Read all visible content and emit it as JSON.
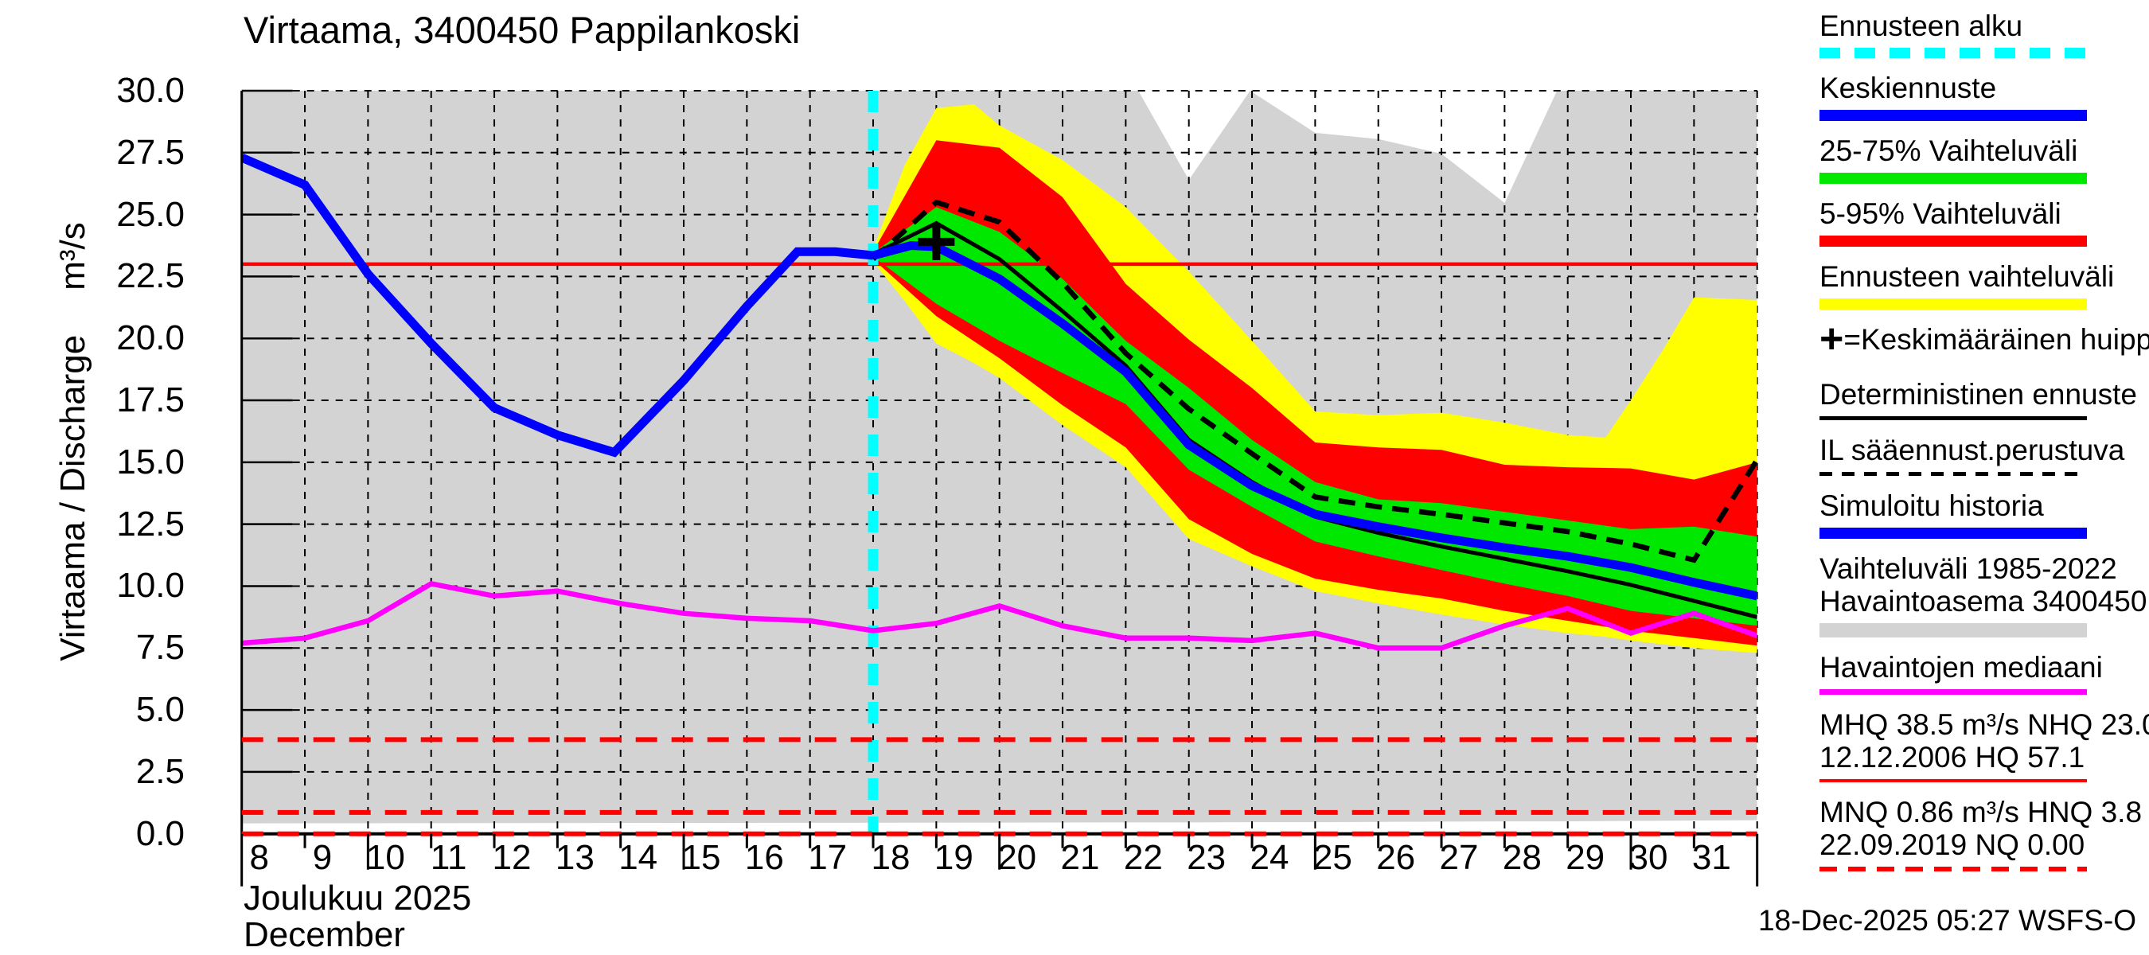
{
  "title": "Virtaama, 3400450 Pappilankoski",
  "y_axis": {
    "label": "Virtaama / Discharge",
    "unit": "m³/s",
    "ticks": [
      "30.0",
      "27.5",
      "25.0",
      "22.5",
      "20.0",
      "17.5",
      "15.0",
      "12.5",
      "10.0",
      "7.5",
      "5.0",
      "2.5",
      "0.0"
    ]
  },
  "x_axis": {
    "days": [
      8,
      9,
      10,
      11,
      12,
      13,
      14,
      15,
      16,
      17,
      18,
      19,
      20,
      21,
      22,
      23,
      24,
      25,
      26,
      27,
      28,
      29,
      30,
      31
    ],
    "month_line1": "Joulukuu 2025",
    "month_line2": "December"
  },
  "footer": {
    "timestamp": "18-Dec-2025 05:27 WSFS-O"
  },
  "colors": {
    "history_band": "#d3d3d3",
    "full_range_band": "#ffff00",
    "band_5_95": "#ff0000",
    "band_25_75": "#00e800",
    "median": "#0000ff",
    "observed_median": "#ff00ff",
    "forecast_start": "#00ffff",
    "reference": "#ff0000",
    "black": "#000000"
  },
  "legend": {
    "items": [
      {
        "label": "Ennusteen alku",
        "swatch": "dash",
        "color": "#00ffff",
        "thick": 13,
        "on": 26,
        "off": 18
      },
      {
        "label": "Keskiennuste",
        "swatch": "solid",
        "color": "#0000ff",
        "thick": 14
      },
      {
        "label": "25-75% Vaihteluväli",
        "swatch": "solid",
        "color": "#00e800",
        "thick": 14
      },
      {
        "label": "5-95% Vaihteluväli",
        "swatch": "solid",
        "color": "#ff0000",
        "thick": 14
      },
      {
        "label": "Ennusteen vaihteluväli",
        "swatch": "solid",
        "color": "#ffff00",
        "thick": 14
      },
      {
        "prefix": "+",
        "label": "=Keskimääräinen huippu",
        "swatch": "none"
      },
      {
        "label": "Deterministinen ennuste",
        "swatch": "solid",
        "color": "#000000",
        "thick": 5
      },
      {
        "label": "IL sääennust.perustuva",
        "swatch": "dash",
        "color": "#000000",
        "thick": 5,
        "on": 16,
        "off": 12
      },
      {
        "label": "Simuloitu historia",
        "swatch": "solid",
        "color": "#0000ff",
        "thick": 14
      },
      {
        "label": "Vaihteluväli 1985-2022",
        "label2": "Havaintoasema 3400450",
        "swatch": "solid",
        "color": "#d3d3d3",
        "thick": 18
      },
      {
        "label": "Havaintojen mediaani",
        "swatch": "solid",
        "color": "#ff00ff",
        "thick": 7
      },
      {
        "label": "MHQ 38.5 m³/s NHQ 23.0",
        "label2": "12.12.2006 HQ 57.1",
        "swatch": "solid",
        "color": "#ff0000",
        "thick": 4
      },
      {
        "label": "MNQ 0.86 m³/s HNQ  3.8",
        "label2": "22.09.2019 NQ 0.00",
        "swatch": "dash",
        "color": "#ff0000",
        "thick": 6,
        "on": 22,
        "off": 14
      }
    ]
  },
  "chart_data": {
    "type": "line",
    "title": "Virtaama, 3400450 Pappilankoski",
    "xlabel": "Joulukuu 2025 / December (day of month, extends to 1 Jan)",
    "ylabel": "Virtaama / Discharge m³/s",
    "x_range": [
      8,
      32
    ],
    "y_range": [
      0,
      30
    ],
    "grid": true,
    "forecast_start_x": 18,
    "mean_peak_marker": {
      "x": 19,
      "y": 23.9
    },
    "reference_lines": {
      "NHQ_solid_red": 23.0,
      "HNQ_dashed_red": 3.8,
      "MNQ_dashed_red": 0.86,
      "NQ_dashed_red": 0.0
    },
    "band_history_1985_2022": {
      "x": [
        8,
        22.2,
        23,
        23.97,
        25,
        26,
        27,
        28,
        28.83,
        32
      ],
      "upper": [
        30,
        30,
        26.4,
        30,
        28.3,
        28.05,
        27.46,
        25.47,
        30,
        30
      ],
      "lower": [
        0.42,
        0.46,
        0.46,
        0.47,
        0.47,
        0.48,
        0.49,
        0.5,
        0.5,
        0.55
      ]
    },
    "band_full_range": {
      "x": [
        18,
        18.5,
        19,
        19.6,
        20,
        21,
        22,
        23,
        24,
        25,
        26,
        27,
        28,
        29,
        29.6,
        30,
        30.5,
        31,
        32
      ],
      "upper": [
        23.6,
        27.0,
        29.3,
        29.45,
        28.6,
        27.2,
        25.3,
        22.7,
        19.9,
        17.05,
        16.9,
        17.0,
        16.6,
        16.1,
        16.0,
        17.5,
        19.5,
        21.66,
        21.55
      ],
      "lower": [
        23.1,
        21.5,
        19.8,
        19.0,
        18.4,
        16.5,
        14.8,
        11.9,
        10.8,
        9.8,
        9.3,
        8.85,
        8.45,
        8.1,
        7.95,
        7.8,
        7.65,
        7.5,
        7.3
      ]
    },
    "band_5_95": {
      "x": [
        18,
        19,
        20,
        21,
        22,
        23,
        24,
        25,
        26,
        27,
        28,
        29,
        30,
        31,
        32
      ],
      "upper": [
        23.5,
        28.0,
        27.7,
        25.7,
        22.2,
        19.95,
        18.0,
        15.8,
        15.6,
        15.5,
        14.9,
        14.8,
        14.75,
        14.3,
        15.0
      ],
      "lower": [
        23.2,
        20.9,
        19.2,
        17.3,
        15.6,
        12.7,
        11.3,
        10.3,
        9.85,
        9.5,
        9.0,
        8.6,
        8.2,
        7.9,
        7.6
      ]
    },
    "band_25_75": {
      "x": [
        18,
        19,
        20,
        21,
        22,
        23,
        24,
        25,
        26,
        27,
        28,
        29,
        30,
        31,
        32
      ],
      "upper": [
        23.45,
        25.3,
        24.3,
        22.4,
        19.9,
        18.0,
        15.9,
        14.2,
        13.5,
        13.35,
        13.0,
        12.65,
        12.3,
        12.4,
        12.0
      ],
      "lower": [
        23.3,
        21.4,
        19.9,
        18.6,
        17.35,
        14.7,
        13.2,
        11.8,
        11.2,
        10.65,
        10.1,
        9.6,
        9.0,
        8.7,
        8.4
      ]
    },
    "simulated_history": {
      "x": [
        8,
        9,
        10,
        11,
        12,
        13,
        13.9,
        15,
        16,
        16.8,
        17.4,
        18
      ],
      "y": [
        27.3,
        26.2,
        22.6,
        19.8,
        17.2,
        16.1,
        15.4,
        18.3,
        21.3,
        23.5,
        23.5,
        23.35
      ]
    },
    "median_forecast": {
      "x": [
        18,
        18.6,
        19,
        20,
        21,
        22,
        23,
        24,
        25,
        26,
        27,
        28,
        29,
        30,
        31,
        32
      ],
      "y": [
        23.35,
        23.75,
        23.7,
        22.4,
        20.6,
        18.65,
        15.7,
        14.05,
        12.9,
        12.4,
        11.95,
        11.55,
        11.2,
        10.75,
        10.15,
        9.6
      ]
    },
    "deterministic_forecast": {
      "x": [
        18,
        19,
        20,
        21,
        22,
        23,
        24,
        25,
        26,
        27,
        28,
        29,
        30,
        31,
        32
      ],
      "y": [
        23.4,
        24.65,
        23.2,
        21.1,
        18.9,
        15.9,
        14.2,
        12.8,
        12.15,
        11.6,
        11.1,
        10.6,
        10.05,
        9.4,
        8.75
      ]
    },
    "weather_based_forecast": {
      "x": [
        18,
        19,
        20,
        21,
        22,
        23,
        24,
        25,
        26,
        27,
        28,
        29,
        30,
        31,
        32
      ],
      "y": [
        23.2,
        25.5,
        24.7,
        22.25,
        19.4,
        17.15,
        15.35,
        13.6,
        13.2,
        12.9,
        12.55,
        12.2,
        11.7,
        11.05,
        15.1
      ]
    },
    "observed_median": {
      "x": [
        8,
        9,
        10,
        11,
        12,
        13,
        14,
        15,
        16,
        17,
        18,
        19,
        20,
        21,
        22,
        23,
        24,
        25,
        26,
        27,
        28,
        29,
        30,
        31,
        32
      ],
      "y": [
        7.7,
        7.9,
        8.6,
        10.1,
        9.6,
        9.8,
        9.3,
        8.9,
        8.7,
        8.6,
        8.2,
        8.5,
        9.2,
        8.4,
        7.9,
        7.9,
        7.8,
        8.1,
        7.5,
        7.5,
        8.4,
        9.1,
        8.1,
        8.9,
        8.0
      ]
    }
  }
}
